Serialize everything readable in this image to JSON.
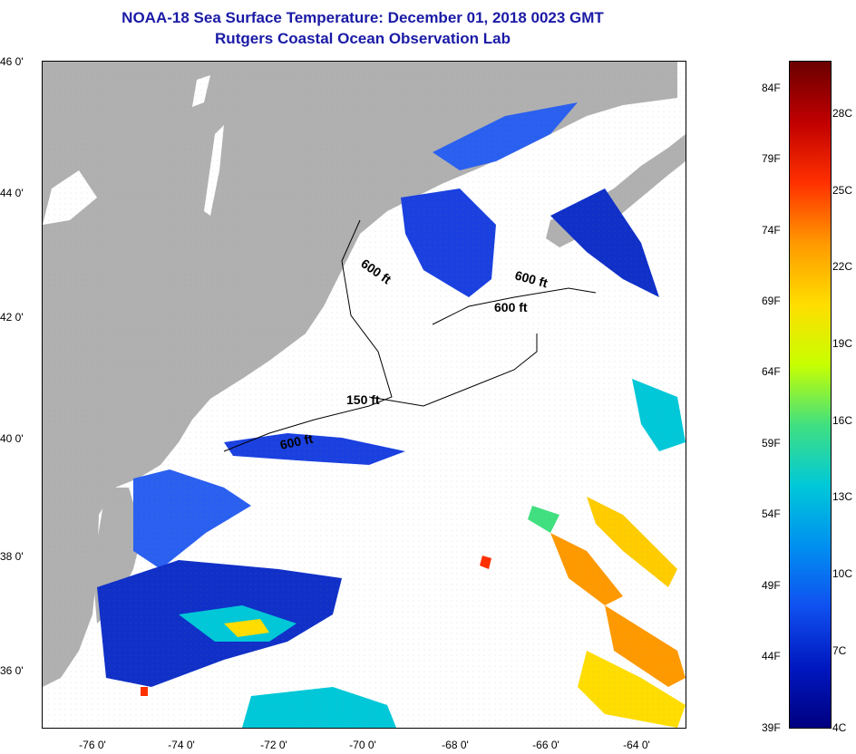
{
  "title_line1": "NOAA-18 Sea Surface Temperature:  December 01, 2018 0023 GMT",
  "title_line2": "Rutgers Coastal Ocean Observation Lab",
  "lat_labels": [
    "46 0'",
    "44 0'",
    "42 0'",
    "40 0'",
    "38 0'",
    "36 0'"
  ],
  "lon_labels": [
    "-76 0'",
    "-74 0'",
    "-72 0'",
    "-70 0'",
    "-68 0'",
    "-66 0'",
    "-64 0'"
  ],
  "depth_labels": [
    "600 ft",
    "600 ft",
    "600 ft",
    "150 ft",
    "600 ft"
  ],
  "colorbar": {
    "fahrenheit": [
      "84F",
      "79F",
      "74F",
      "69F",
      "64F",
      "59F",
      "54F",
      "49F",
      "44F",
      "39F"
    ],
    "celsius": [
      "28C",
      "25C",
      "22C",
      "19C",
      "16C",
      "13C",
      "10C",
      "7C",
      "4C"
    ],
    "colors": [
      "#6b0000",
      "#c00000",
      "#ff3000",
      "#ff9900",
      "#ffdd00",
      "#c8ff00",
      "#40e080",
      "#00c8d8",
      "#0090f0",
      "#1050f0",
      "#0018c0",
      "#000080"
    ]
  },
  "colors": {
    "land": "#b0b0b0",
    "ocean_nodata": "#ffffff",
    "title": "#1a1aa6",
    "cold_water": "#1a40e0"
  }
}
